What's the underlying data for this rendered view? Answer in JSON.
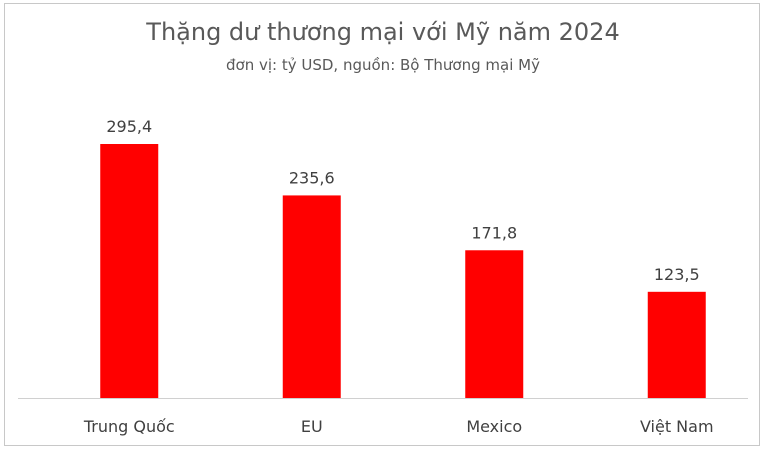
{
  "chart_data": {
    "type": "bar",
    "title": "Thặng dư thương mại với Mỹ năm 2024",
    "subtitle": "đơn vị: tỷ USD, nguồn: Bộ Thương mại Mỹ",
    "categories": [
      "Trung Quốc",
      "EU",
      "Mexico",
      "Việt Nam"
    ],
    "values": [
      295.4,
      235.6,
      171.8,
      123.5
    ],
    "value_labels": [
      "295,4",
      "235,6",
      "171,8",
      "123,5"
    ],
    "xlabel": "",
    "ylabel": "",
    "ylim": [
      0,
      350
    ],
    "grid": false,
    "legend": "none",
    "bar_color": "#ff0000"
  }
}
